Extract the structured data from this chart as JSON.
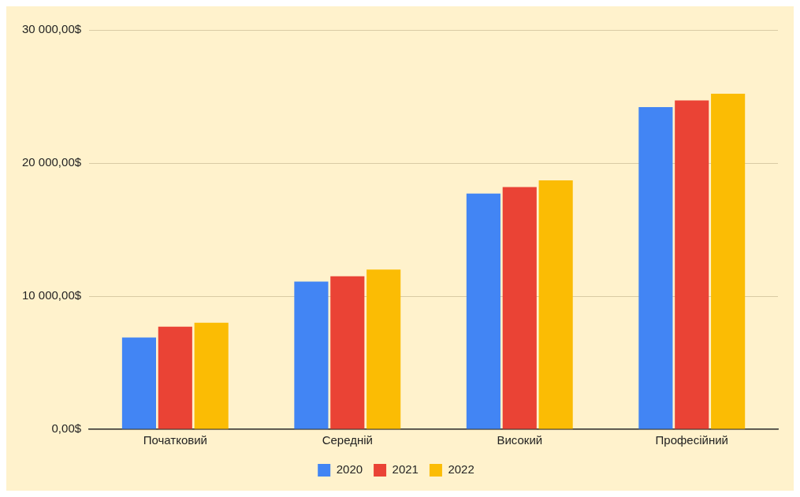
{
  "chart_data": {
    "type": "bar",
    "categories": [
      "Початковий",
      "Середній",
      "Високий",
      "Професійний"
    ],
    "series": [
      {
        "name": "2020",
        "color": "#4285f4",
        "values": [
          6900,
          11100,
          17700,
          24200
        ]
      },
      {
        "name": "2021",
        "color": "#ea4335",
        "values": [
          7700,
          11500,
          18200,
          24700
        ]
      },
      {
        "name": "2022",
        "color": "#fbbc04",
        "values": [
          8000,
          12000,
          18700,
          25200
        ]
      }
    ],
    "ylim": [
      0,
      30000
    ],
    "yticks": [
      {
        "value": 0,
        "label": "0,00$"
      },
      {
        "value": 10000,
        "label": "10 000,00$"
      },
      {
        "value": 20000,
        "label": "20 000,00$"
      },
      {
        "value": 30000,
        "label": "30 000,00$"
      }
    ],
    "grid": "y",
    "legend": "bottom"
  }
}
